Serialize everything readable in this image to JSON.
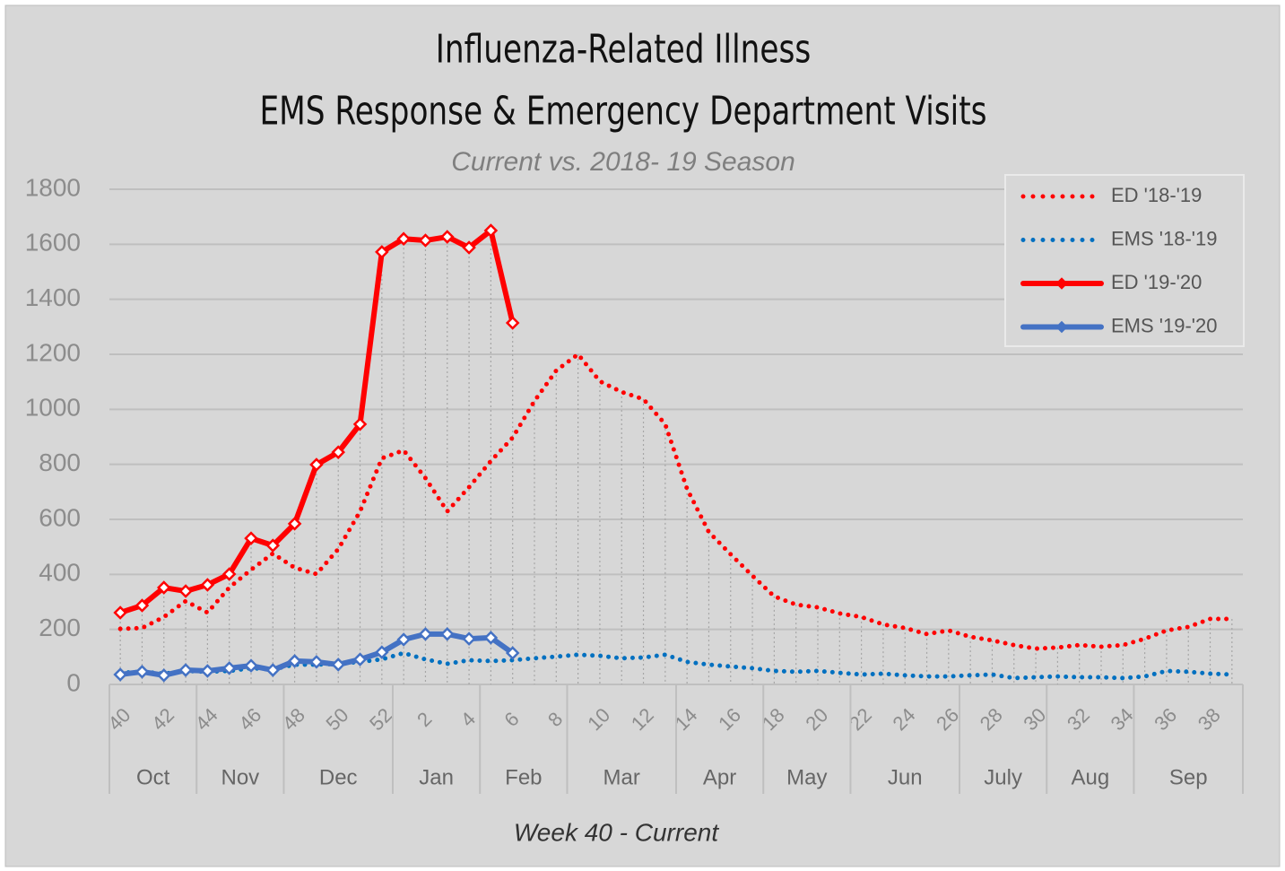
{
  "chart_data": {
    "type": "line",
    "title": [
      "Influenza-Related Illness",
      "EMS Response & Emergency Department Visits"
    ],
    "subtitle": "Current vs. 2018- 19 Season",
    "x_label": "Week 40 - Current",
    "categories": [
      40,
      null,
      42,
      null,
      44,
      null,
      46,
      null,
      48,
      null,
      50,
      null,
      52,
      null,
      2,
      null,
      4,
      null,
      6,
      null,
      8,
      null,
      10,
      null,
      12,
      null,
      14,
      null,
      16,
      null,
      18,
      null,
      20,
      null,
      22,
      null,
      24,
      null,
      26,
      null,
      28,
      null,
      30,
      null,
      32,
      null,
      34,
      null,
      36,
      null,
      38,
      null
    ],
    "x_groups": [
      "Oct",
      "Nov",
      "Dec",
      "Jan",
      "Feb",
      "Mar",
      "Apr",
      "May",
      "Jun",
      "July",
      "Aug",
      "Sep"
    ],
    "ylim": [
      0,
      1800
    ],
    "yticks": [
      0,
      200,
      400,
      600,
      800,
      1000,
      1200,
      1400,
      1600,
      1800
    ],
    "grid": true,
    "drop_lines": true,
    "legend": "top-right",
    "series": [
      {
        "name": "ED '18-'19",
        "color": "#ff0000",
        "style": "dotted",
        "values": [
          202,
          205,
          245,
          303,
          261,
          352,
          417,
          476,
          424,
          401,
          492,
          629,
          822,
          851,
          750,
          629,
          717,
          812,
          897,
          1030,
          1141,
          1200,
          1102,
          1063,
          1037,
          946,
          711,
          554,
          473,
          395,
          320,
          290,
          280,
          258,
          245,
          218,
          205,
          183,
          196,
          173,
          160,
          143,
          130,
          134,
          143,
          137,
          143,
          166,
          196,
          209,
          238,
          238
        ]
      },
      {
        "name": "EMS '18-'19",
        "color": "#0070c0",
        "style": "dotted",
        "values": [
          42,
          46,
          39,
          49,
          46,
          49,
          59,
          55,
          72,
          72,
          75,
          82,
          91,
          114,
          91,
          75,
          88,
          85,
          88,
          95,
          101,
          108,
          104,
          95,
          98,
          108,
          82,
          72,
          65,
          59,
          49,
          46,
          49,
          42,
          36,
          39,
          33,
          29,
          29,
          33,
          36,
          23,
          26,
          29,
          26,
          26,
          23,
          29,
          49,
          46,
          39,
          36
        ]
      },
      {
        "name": "ED '19-'20",
        "color": "#ff0000",
        "style": "solid",
        "values": [
          261,
          287,
          352,
          339,
          362,
          401,
          531,
          505,
          584,
          799,
          844,
          946,
          1572,
          1620,
          1614,
          1627,
          1588,
          1650,
          1314,
          null,
          null,
          null,
          null,
          null,
          null,
          null,
          null,
          null,
          null,
          null,
          null,
          null,
          null,
          null,
          null,
          null,
          null,
          null,
          null,
          null,
          null,
          null,
          null,
          null,
          null,
          null,
          null,
          null,
          null,
          null,
          null,
          null
        ]
      },
      {
        "name": "EMS '19-'20",
        "color": "#4472c4",
        "style": "solid",
        "values": [
          36,
          46,
          33,
          52,
          49,
          59,
          68,
          52,
          85,
          82,
          72,
          91,
          117,
          163,
          183,
          183,
          166,
          170,
          114,
          null,
          null,
          null,
          null,
          null,
          null,
          null,
          null,
          null,
          null,
          null,
          null,
          null,
          null,
          null,
          null,
          null,
          null,
          null,
          null,
          null,
          null,
          null,
          null,
          null,
          null,
          null,
          null,
          null,
          null,
          null,
          null,
          null
        ]
      }
    ]
  }
}
